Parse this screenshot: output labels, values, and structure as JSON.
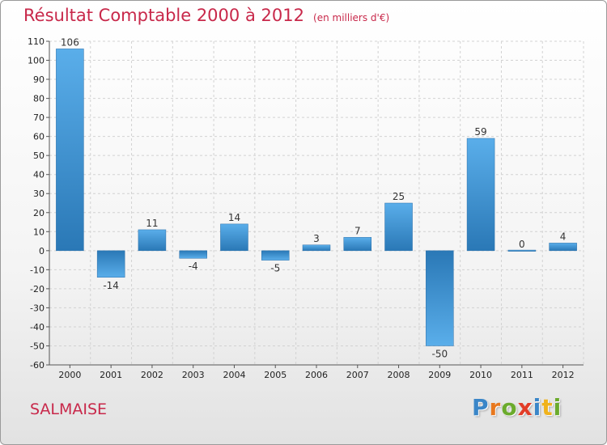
{
  "title": "Résultat Comptable 2000 à 2012",
  "unit_note": "(en milliers d'€)",
  "place": "SALMAISE",
  "logo": {
    "text": "Proxiti",
    "letters": [
      {
        "ch": "P",
        "color": "#3a86c8"
      },
      {
        "ch": "r",
        "color": "#e8781e"
      },
      {
        "ch": "o",
        "color": "#6bab2c"
      },
      {
        "ch": "x",
        "color": "#e23c27"
      },
      {
        "ch": "i",
        "color": "#3a86c8"
      },
      {
        "ch": "t",
        "color": "#f0b21b"
      },
      {
        "ch": "i",
        "color": "#6bab2c"
      }
    ]
  },
  "colors": {
    "bar_light": "#5aaeea",
    "bar_dark": "#2a78b6",
    "title": "#c8284a"
  },
  "chart_data": {
    "type": "bar",
    "categories": [
      "2000",
      "2001",
      "2002",
      "2003",
      "2004",
      "2005",
      "2006",
      "2007",
      "2008",
      "2009",
      "2010",
      "2011",
      "2012"
    ],
    "values": [
      106,
      -14,
      11,
      -4,
      14,
      -5,
      3,
      7,
      25,
      -50,
      59,
      0,
      4
    ],
    "value_labels": [
      "106",
      "-14",
      "11",
      "-4",
      "14",
      "-5",
      "3",
      "7",
      "25",
      "-50",
      "59",
      "0",
      "4"
    ],
    "ylim": [
      -60,
      110
    ],
    "yticks": [
      -60,
      -50,
      -40,
      -30,
      -20,
      -10,
      0,
      10,
      20,
      30,
      40,
      50,
      60,
      70,
      80,
      90,
      100,
      110
    ],
    "grid": true,
    "legend": "none"
  }
}
